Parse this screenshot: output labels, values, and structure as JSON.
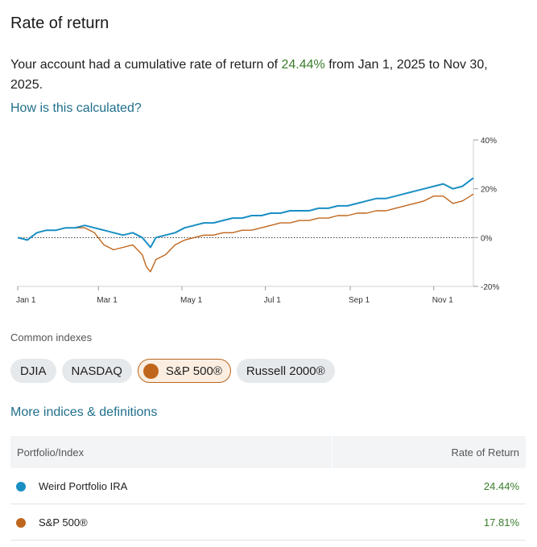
{
  "header": {
    "title": "Rate of return"
  },
  "summary": {
    "prefix": "Your account had a cumulative rate of return of ",
    "return_pct": "24.44%",
    "suffix": " from Jan 1, 2025 to Nov 30, 2025."
  },
  "links": {
    "how_calculated": "How is this calculated?",
    "more_indices": "More indices & definitions"
  },
  "indexes": {
    "label": "Common indexes",
    "chips": [
      {
        "label": "DJIA",
        "active": false
      },
      {
        "label": "NASDAQ",
        "active": false
      },
      {
        "label": "S&P 500®",
        "active": true
      },
      {
        "label": "Russell 2000®",
        "active": false
      }
    ]
  },
  "colors": {
    "portfolio": "#1a8fc4",
    "sp500": "#c0661c",
    "positive": "#3a7d2c"
  },
  "table": {
    "headers": [
      "Portfolio/Index",
      "Rate of Return"
    ],
    "rows": [
      {
        "name": "Weird Portfolio IRA",
        "value": "24.44%",
        "color": "#1a8fc4"
      },
      {
        "name": "S&P 500®",
        "value": "17.81%",
        "color": "#c0661c"
      }
    ]
  },
  "chart_data": {
    "type": "line",
    "x_tick_labels": [
      "Jan 1",
      "Mar 1",
      "May 1",
      "Jul 1",
      "Sep 1",
      "Nov 1"
    ],
    "y_tick_labels": [
      "40%",
      "20%",
      "0%",
      "-20%"
    ],
    "ylim": [
      -20,
      40
    ],
    "grid": false,
    "legend": "none",
    "series": [
      {
        "name": "Weird Portfolio IRA",
        "x": [
          "2025-01-01",
          "2025-01-08",
          "2025-01-15",
          "2025-01-22",
          "2025-01-29",
          "2025-02-05",
          "2025-02-12",
          "2025-02-19",
          "2025-02-26",
          "2025-03-05",
          "2025-03-12",
          "2025-03-19",
          "2025-03-26",
          "2025-04-02",
          "2025-04-05",
          "2025-04-08",
          "2025-04-12",
          "2025-04-19",
          "2025-04-26",
          "2025-05-03",
          "2025-05-10",
          "2025-05-17",
          "2025-05-24",
          "2025-05-31",
          "2025-06-07",
          "2025-06-14",
          "2025-06-21",
          "2025-06-28",
          "2025-07-05",
          "2025-07-12",
          "2025-07-19",
          "2025-07-26",
          "2025-08-02",
          "2025-08-09",
          "2025-08-16",
          "2025-08-23",
          "2025-08-30",
          "2025-09-06",
          "2025-09-13",
          "2025-09-20",
          "2025-09-27",
          "2025-10-04",
          "2025-10-11",
          "2025-10-18",
          "2025-10-25",
          "2025-11-01",
          "2025-11-08",
          "2025-11-15",
          "2025-11-22",
          "2025-11-30"
        ],
        "values": [
          0,
          -1,
          2,
          3,
          3,
          4,
          4,
          5,
          4,
          3,
          2,
          1,
          2,
          0,
          -2,
          -4,
          0,
          1,
          2,
          4,
          5,
          6,
          6,
          7,
          8,
          8,
          9,
          9,
          10,
          10,
          11,
          11,
          11,
          12,
          12,
          13,
          13,
          14,
          15,
          16,
          16,
          17,
          18,
          19,
          20,
          21,
          22,
          20,
          21,
          24.44
        ]
      },
      {
        "name": "S&P 500®",
        "x": [
          "2025-01-01",
          "2025-01-08",
          "2025-01-15",
          "2025-01-22",
          "2025-01-29",
          "2025-02-05",
          "2025-02-12",
          "2025-02-19",
          "2025-02-26",
          "2025-03-05",
          "2025-03-12",
          "2025-03-19",
          "2025-03-26",
          "2025-04-02",
          "2025-04-05",
          "2025-04-08",
          "2025-04-12",
          "2025-04-19",
          "2025-04-26",
          "2025-05-03",
          "2025-05-10",
          "2025-05-17",
          "2025-05-24",
          "2025-05-31",
          "2025-06-07",
          "2025-06-14",
          "2025-06-21",
          "2025-06-28",
          "2025-07-05",
          "2025-07-12",
          "2025-07-19",
          "2025-07-26",
          "2025-08-02",
          "2025-08-09",
          "2025-08-16",
          "2025-08-23",
          "2025-08-30",
          "2025-09-06",
          "2025-09-13",
          "2025-09-20",
          "2025-09-27",
          "2025-10-04",
          "2025-10-11",
          "2025-10-18",
          "2025-10-25",
          "2025-11-01",
          "2025-11-08",
          "2025-11-15",
          "2025-11-22",
          "2025-11-30"
        ],
        "values": [
          0,
          -1,
          2,
          3,
          3,
          4,
          4,
          4,
          2,
          -3,
          -5,
          -4,
          -3,
          -7,
          -12,
          -14,
          -9,
          -7,
          -3,
          -1,
          0,
          1,
          1,
          2,
          2,
          3,
          3,
          4,
          5,
          6,
          6,
          7,
          7,
          8,
          8,
          9,
          9,
          10,
          10,
          11,
          11,
          12,
          13,
          14,
          15,
          17,
          17,
          14,
          15,
          17.81
        ]
      }
    ]
  }
}
